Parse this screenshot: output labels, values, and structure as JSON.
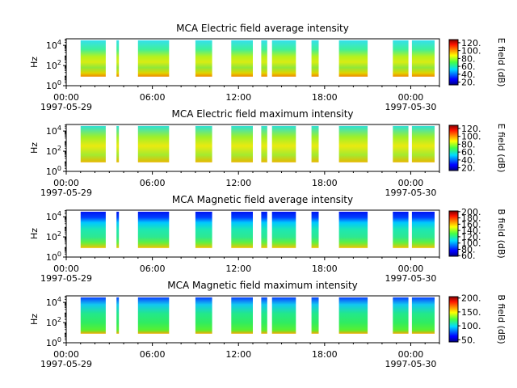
{
  "chart_data": [
    {
      "type": "heatmap",
      "title": "MCA  Electric field average intensity",
      "ylabel": "Hz",
      "y_scale": "log",
      "y_ticks": [
        "10^0",
        "10^2",
        "10^4"
      ],
      "x_ticks": [
        "00:00",
        "06:00",
        "12:00",
        "18:00",
        "00:00"
      ],
      "x_date_labels": [
        "1997-05-29",
        "1997-05-30"
      ],
      "xlim": [
        "1997-05-29 00:00",
        "1997-05-30 02:00"
      ],
      "colorbar": {
        "label": "E field (dB)",
        "ticks": [
          "20.",
          "40.",
          "60.",
          "80.",
          "100.",
          "120."
        ],
        "range": [
          13,
          128
        ],
        "colormap": "jet"
      },
      "data_segments_utc": [
        [
          "01:00",
          "02:45"
        ],
        [
          "03:30",
          "03:40"
        ],
        [
          "05:00",
          "07:10"
        ],
        [
          "09:00",
          "10:10"
        ],
        [
          "11:30",
          "13:00"
        ],
        [
          "13:35",
          "14:00"
        ],
        [
          "14:20",
          "16:00"
        ],
        [
          "17:05",
          "17:35"
        ],
        [
          "19:00",
          "21:00"
        ],
        [
          "22:45",
          "23:50"
        ],
        [
          "24:05",
          "25:40"
        ],
        [
          "26:05",
          "26:40"
        ],
        [
          "27:00",
          "27:20"
        ],
        [
          "31:20",
          "31:40"
        ]
      ]
    },
    {
      "type": "heatmap",
      "title": "MCA  Electric field maximum intensity",
      "ylabel": "Hz",
      "y_scale": "log",
      "y_ticks": [
        "10^0",
        "10^2",
        "10^4"
      ],
      "x_ticks": [
        "00:00",
        "06:00",
        "12:00",
        "18:00",
        "00:00"
      ],
      "x_date_labels": [
        "1997-05-29",
        "1997-05-30"
      ],
      "xlim": [
        "1997-05-29 00:00",
        "1997-05-30 02:00"
      ],
      "colorbar": {
        "label": "E field (dB)",
        "ticks": [
          "20.",
          "40.",
          "60.",
          "80.",
          "100.",
          "120."
        ],
        "range": [
          13,
          128
        ],
        "colormap": "jet"
      },
      "data_segments_utc": [
        [
          "01:00",
          "02:45"
        ],
        [
          "03:30",
          "03:40"
        ],
        [
          "05:00",
          "07:10"
        ],
        [
          "09:00",
          "10:10"
        ],
        [
          "11:30",
          "13:00"
        ],
        [
          "13:35",
          "14:00"
        ],
        [
          "14:20",
          "16:00"
        ],
        [
          "17:05",
          "17:35"
        ],
        [
          "19:00",
          "21:00"
        ],
        [
          "22:45",
          "23:50"
        ],
        [
          "24:05",
          "25:40"
        ],
        [
          "26:05",
          "26:40"
        ],
        [
          "27:00",
          "27:20"
        ],
        [
          "31:20",
          "31:40"
        ]
      ]
    },
    {
      "type": "heatmap",
      "title": "MCA  Magnetic field average intensity",
      "ylabel": "Hz",
      "y_scale": "log",
      "y_ticks": [
        "10^0",
        "10^2",
        "10^4"
      ],
      "x_ticks": [
        "00:00",
        "06:00",
        "12:00",
        "18:00",
        "00:00"
      ],
      "x_date_labels": [
        "1997-05-29",
        "1997-05-30"
      ],
      "xlim": [
        "1997-05-29 00:00",
        "1997-05-30 02:00"
      ],
      "colorbar": {
        "label": "B field (dB)",
        "ticks": [
          "60.",
          "80.",
          "100.",
          "120.",
          "140.",
          "160.",
          "180.",
          "200."
        ],
        "range": [
          58,
          202
        ],
        "colormap": "jet"
      },
      "data_segments_utc": [
        [
          "01:00",
          "02:45"
        ],
        [
          "03:30",
          "03:40"
        ],
        [
          "05:00",
          "07:10"
        ],
        [
          "09:00",
          "10:10"
        ],
        [
          "11:30",
          "13:00"
        ],
        [
          "13:35",
          "14:00"
        ],
        [
          "14:20",
          "16:00"
        ],
        [
          "17:05",
          "17:35"
        ],
        [
          "19:00",
          "21:00"
        ],
        [
          "22:45",
          "23:50"
        ],
        [
          "24:05",
          "25:40"
        ],
        [
          "26:05",
          "26:40"
        ],
        [
          "27:00",
          "27:20"
        ],
        [
          "31:20",
          "31:40"
        ]
      ]
    },
    {
      "type": "heatmap",
      "title": "MCA  Magnetic field maximum intensity",
      "ylabel": "Hz",
      "y_scale": "log",
      "y_ticks": [
        "10^0",
        "10^2",
        "10^4"
      ],
      "x_ticks": [
        "00:00",
        "06:00",
        "12:00",
        "18:00",
        "00:00"
      ],
      "x_date_labels": [
        "1997-05-29",
        "1997-05-30"
      ],
      "xlim": [
        "1997-05-29 00:00",
        "1997-05-30 02:00"
      ],
      "colorbar": {
        "label": "B field (dB)",
        "ticks": [
          "50.",
          "100.",
          "150.",
          "200."
        ],
        "range": [
          42,
          205
        ],
        "colormap": "jet"
      },
      "data_segments_utc": [
        [
          "01:00",
          "02:45"
        ],
        [
          "03:30",
          "03:40"
        ],
        [
          "05:00",
          "07:10"
        ],
        [
          "09:00",
          "10:10"
        ],
        [
          "11:30",
          "13:00"
        ],
        [
          "13:35",
          "14:00"
        ],
        [
          "14:20",
          "16:00"
        ],
        [
          "17:05",
          "17:35"
        ],
        [
          "19:00",
          "21:00"
        ],
        [
          "22:45",
          "23:50"
        ],
        [
          "24:05",
          "25:40"
        ],
        [
          "26:05",
          "26:40"
        ],
        [
          "27:00",
          "27:20"
        ],
        [
          "31:20",
          "31:40"
        ]
      ]
    }
  ]
}
